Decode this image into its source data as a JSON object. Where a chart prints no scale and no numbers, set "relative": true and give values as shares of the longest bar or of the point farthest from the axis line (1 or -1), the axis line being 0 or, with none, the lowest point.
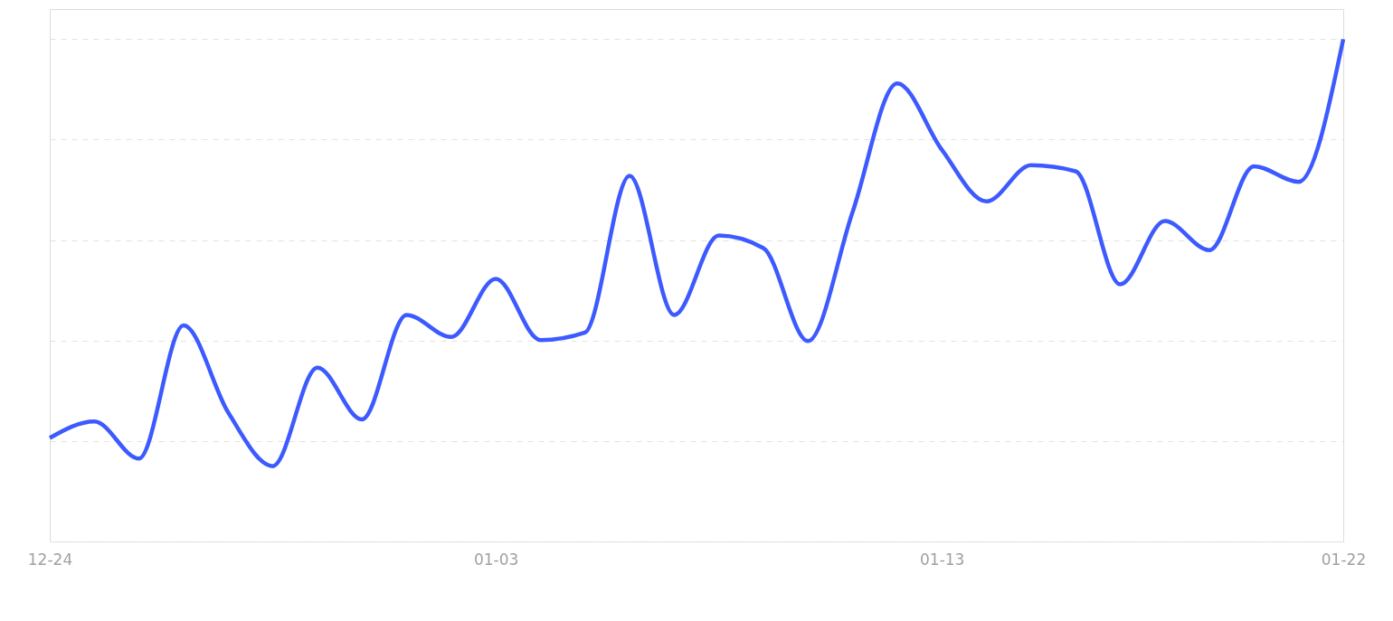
{
  "chart_data": {
    "type": "line",
    "relative": true,
    "grid": "y",
    "line_style": "solid",
    "marker": "none",
    "categories": [
      "12-24",
      null,
      null,
      null,
      null,
      null,
      null,
      null,
      null,
      null,
      "01-03",
      null,
      null,
      null,
      null,
      null,
      null,
      null,
      null,
      null,
      "01-13",
      null,
      null,
      null,
      null,
      null,
      null,
      null,
      null,
      "01-22"
    ],
    "series": [
      {
        "color": "#3d5afe",
        "values": [
          0.206,
          0.239,
          0.165,
          0.43,
          0.257,
          0.15,
          0.346,
          0.243,
          0.451,
          0.407,
          0.523,
          0.401,
          0.416,
          0.728,
          0.451,
          0.609,
          0.584,
          0.399,
          0.656,
          0.912,
          0.78,
          0.677,
          0.749,
          0.737,
          0.512,
          0.638,
          0.58,
          0.747,
          0.716,
          1.0
        ]
      }
    ]
  }
}
